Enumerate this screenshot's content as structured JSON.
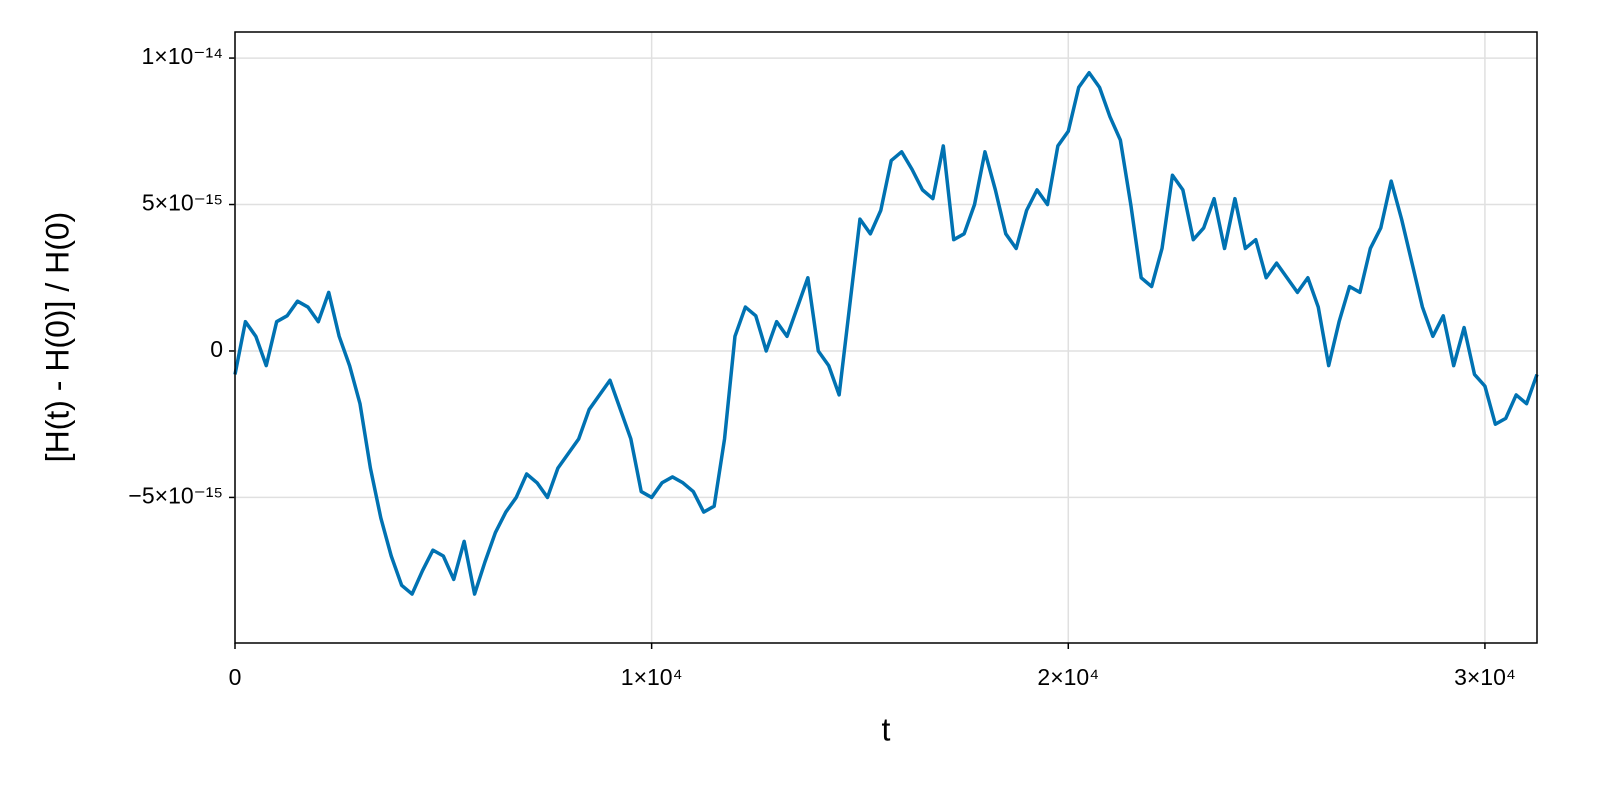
{
  "chart_data": {
    "type": "line",
    "xlabel": "t",
    "ylabel": "[H(t) - H(0)] / H(0)",
    "color": "#0072b2",
    "grid": true,
    "xlim": [
      0,
      31250
    ],
    "ylim": [
      -9.97e-15,
      1.089e-14
    ],
    "xticks": [
      0,
      {
        "value": 10000,
        "label": "1×10⁴"
      },
      {
        "value": 20000,
        "label": "2×10⁴"
      },
      {
        "value": 30000,
        "label": "3×10⁴"
      }
    ],
    "yticks": [
      {
        "value": -5e-15,
        "label": "−5×10⁻¹⁵"
      },
      0,
      {
        "value": 5e-15,
        "label": "5×10⁻¹⁵"
      },
      {
        "value": 1e-14,
        "label": "1×10⁻¹⁴"
      }
    ],
    "x": [
      0,
      250,
      500,
      750,
      1000,
      1250,
      1500,
      1750,
      2000,
      2250,
      2500,
      2750,
      3000,
      3250,
      3500,
      3750,
      4000,
      4250,
      4500,
      4750,
      5000,
      5250,
      5500,
      5750,
      6000,
      6250,
      6500,
      6750,
      7000,
      7250,
      7500,
      7750,
      8000,
      8250,
      8500,
      8750,
      9000,
      9250,
      9500,
      9750,
      10000,
      10250,
      10500,
      10750,
      11000,
      11250,
      11500,
      11750,
      12000,
      12250,
      12500,
      12750,
      13000,
      13250,
      13500,
      13750,
      14000,
      14250,
      14500,
      14750,
      15000,
      15250,
      15500,
      15750,
      16000,
      16250,
      16500,
      16750,
      17000,
      17250,
      17500,
      17750,
      18000,
      18250,
      18500,
      18750,
      19000,
      19250,
      19500,
      19750,
      20000,
      20250,
      20500,
      20750,
      21000,
      21250,
      21500,
      21750,
      22000,
      22250,
      22500,
      22750,
      23000,
      23250,
      23500,
      23750,
      24000,
      24250,
      24500,
      24750,
      25000,
      25250,
      25500,
      25750,
      26000,
      26250,
      26500,
      26750,
      27000,
      27250,
      27500,
      27750,
      28000,
      28250,
      28500,
      28750,
      29000,
      29250,
      29500,
      29750,
      30000,
      30250,
      30500,
      30750,
      31000,
      31250
    ],
    "values": [
      -8e-16,
      1e-15,
      5e-16,
      -5e-16,
      1e-15,
      1.2e-15,
      1.7e-15,
      1.5e-15,
      1e-15,
      2e-15,
      5e-16,
      -5e-16,
      -1.8e-15,
      -4e-15,
      -5.7e-15,
      -7e-15,
      -8e-15,
      -8.3e-15,
      -7.5e-15,
      -6.8e-15,
      -7e-15,
      -7.8e-15,
      -6.5e-15,
      -8.3e-15,
      -7.2e-15,
      -6.2e-15,
      -5.5e-15,
      -5e-15,
      -4.2e-15,
      -4.5e-15,
      -5e-15,
      -4e-15,
      -3.5e-15,
      -3e-15,
      -2e-15,
      -1.5e-15,
      -1e-15,
      -2e-15,
      -3e-15,
      -4.8e-15,
      -5e-15,
      -4.5e-15,
      -4.3e-15,
      -4.5e-15,
      -4.8e-15,
      -5.5e-15,
      -5.3e-15,
      -3e-15,
      5e-16,
      1.5e-15,
      1.2e-15,
      0,
      1e-15,
      5e-16,
      1.5e-15,
      2.5e-15,
      0,
      -5e-16,
      -1.5e-15,
      1.5e-15,
      4.5e-15,
      4e-15,
      4.8e-15,
      6.5e-15,
      6.8e-15,
      6.2e-15,
      5.5e-15,
      5.2e-15,
      7e-15,
      3.8e-15,
      4e-15,
      5e-15,
      6.8e-15,
      5.5e-15,
      4e-15,
      3.5e-15,
      4.8e-15,
      5.5e-15,
      5e-15,
      7e-15,
      7.5e-15,
      9e-15,
      9.5e-15,
      9e-15,
      8e-15,
      7.2e-15,
      5e-15,
      2.5e-15,
      2.2e-15,
      3.5e-15,
      6e-15,
      5.5e-15,
      3.8e-15,
      4.2e-15,
      5.2e-15,
      3.5e-15,
      5.2e-15,
      3.5e-15,
      3.8e-15,
      2.5e-15,
      3e-15,
      2.5e-15,
      2e-15,
      2.5e-15,
      1.5e-15,
      -5e-16,
      1e-15,
      2.2e-15,
      2e-15,
      3.5e-15,
      4.2e-15,
      5.8e-15,
      4.5e-15,
      3e-15,
      1.5e-15,
      5e-16,
      1.2e-15,
      -5e-16,
      8e-16,
      -8e-16,
      -1.2e-15,
      -2.5e-15,
      -2.3e-15,
      -1.5e-15,
      -1.8e-15,
      -8e-16
    ]
  }
}
